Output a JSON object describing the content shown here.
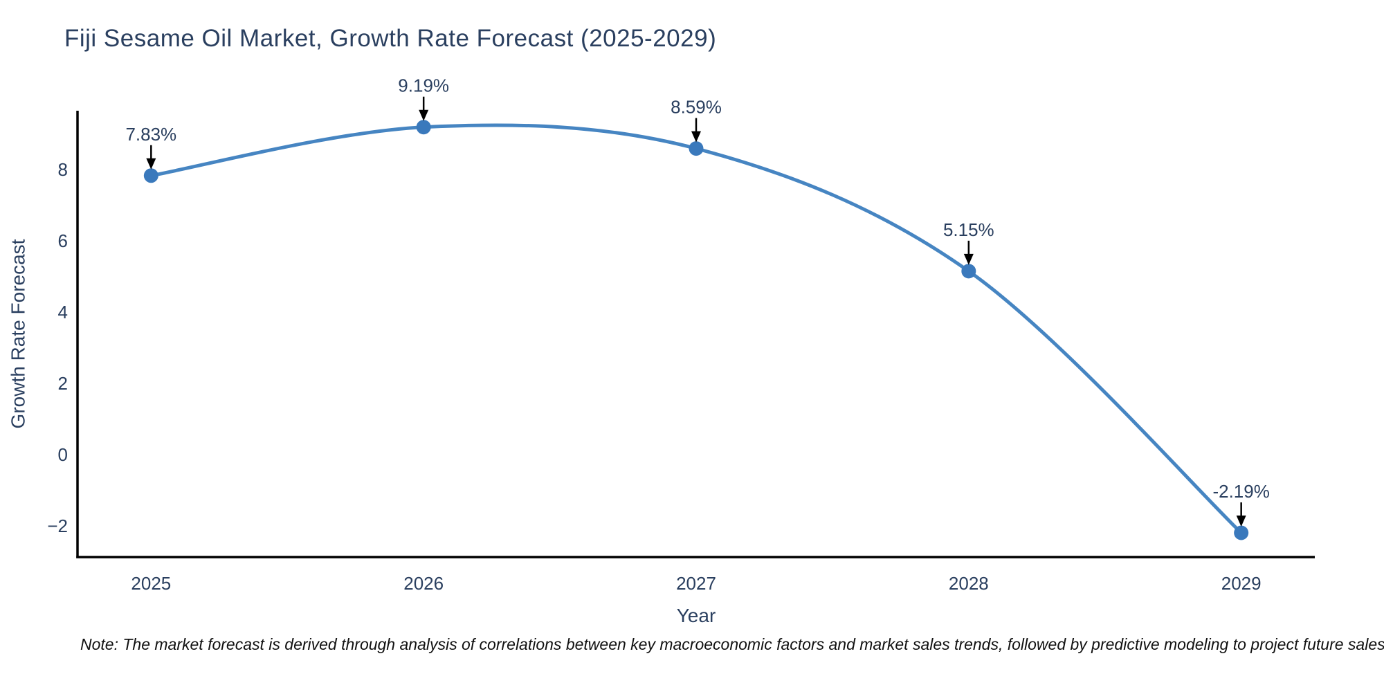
{
  "chart": {
    "title": "Fiji Sesame Oil Market, Growth Rate Forecast (2025-2029)",
    "note": "Note: The market forecast is derived through analysis of correlations between key macroeconomic factors and market sales trends, followed by predictive modeling to project future sales"
  },
  "chart_data": {
    "type": "line",
    "title": "Fiji Sesame Oil Market, Growth Rate Forecast (2025-2029)",
    "x": [
      2025,
      2026,
      2027,
      2028,
      2029
    ],
    "y": [
      7.83,
      9.19,
      8.59,
      5.15,
      -2.19
    ],
    "point_labels": [
      "7.83%",
      "9.19%",
      "8.59%",
      "5.15%",
      "-2.19%"
    ],
    "xlabel": "Year",
    "ylabel": "Growth Rate Forecast",
    "xticks": [
      2025,
      2026,
      2027,
      2028,
      2029
    ],
    "yticks": [
      -2,
      0,
      2,
      4,
      6,
      8
    ],
    "xlim": [
      2024.73,
      2029.27
    ],
    "ylim": [
      -2.87,
      9.65
    ],
    "line_shape": "spline",
    "grid": false,
    "legend": "none",
    "colors": {
      "line": "#4685c2",
      "marker": "#3a79bc",
      "text": "#2a3f5f",
      "spine": "#000000",
      "arrow": "#000000",
      "note": "#111111"
    }
  }
}
